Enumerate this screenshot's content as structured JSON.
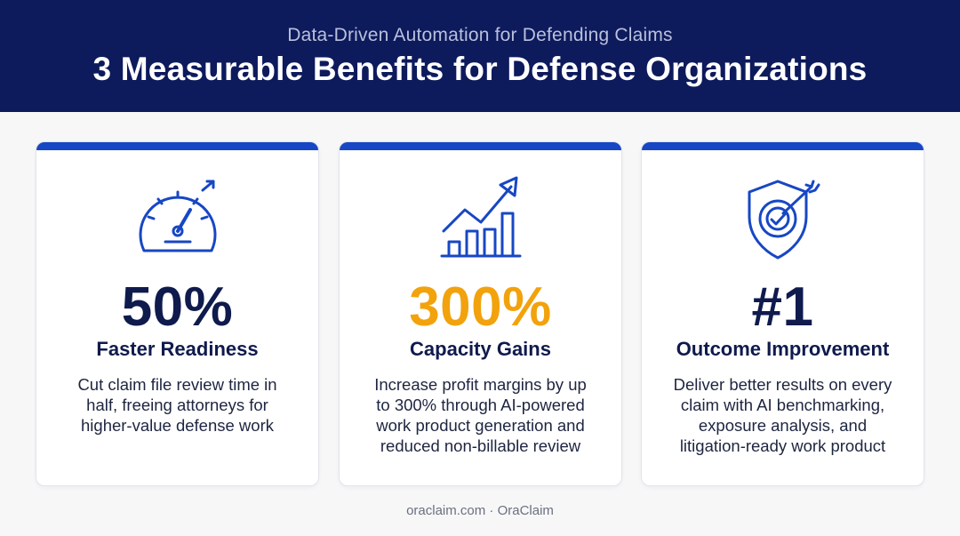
{
  "header": {
    "subtitle": "Data-Driven Automation for Defending Claims",
    "title": "3 Measurable Benefits for Defense Organizations"
  },
  "colors": {
    "banner": "#0d1a5c",
    "accent_bar": "#1747c4",
    "stat_navy": "#0f1a4d",
    "stat_orange": "#f2a20c",
    "icon_blue": "#1747c4"
  },
  "cards": [
    {
      "icon": "speedometer-icon",
      "stat": "50%",
      "stat_color": "#0f1a4d",
      "label": "Faster Readiness",
      "description": "Cut claim file review time in half, freeing attorneys for higher-value defense work"
    },
    {
      "icon": "growth-chart-icon",
      "stat": "300%",
      "stat_color": "#f2a20c",
      "label": "Capacity Gains",
      "description": "Increase profit margins by up to 300% through AI-powered work product generation and reduced non-billable review"
    },
    {
      "icon": "shield-target-icon",
      "stat": "#1",
      "stat_color": "#0f1a4d",
      "label": "Outcome Improvement",
      "description": "Deliver better results on every claim with AI benchmarking, exposure analysis, and litigation-ready work product"
    }
  ],
  "footer": {
    "text": "oraclaim.com · OraClaim"
  }
}
